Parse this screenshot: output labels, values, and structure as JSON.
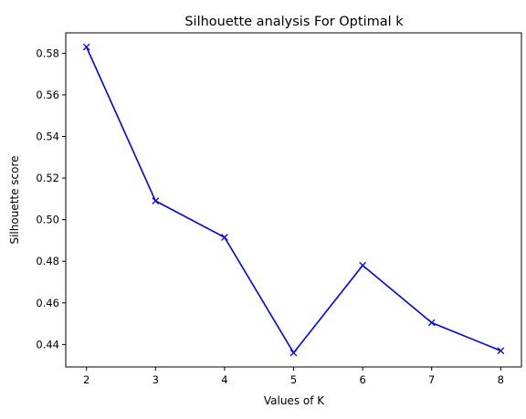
{
  "chart_data": {
    "type": "line",
    "title": "Silhouette analysis For Optimal k",
    "xlabel": "Values of K",
    "ylabel": "Silhouette score",
    "x": [
      2,
      3,
      4,
      5,
      6,
      7,
      8
    ],
    "series": [
      {
        "values": [
          0.583,
          0.509,
          0.4915,
          0.436,
          0.478,
          0.4505,
          0.437
        ],
        "color": "#0000ff",
        "marker": "x",
        "line_style": "solid"
      }
    ],
    "xlim": [
      1.7,
      8.3
    ],
    "ylim": [
      0.4292,
      0.5898
    ],
    "xticks": [
      "2",
      "3",
      "4",
      "5",
      "6",
      "7",
      "8"
    ],
    "yticks": [
      "0.44",
      "0.46",
      "0.48",
      "0.50",
      "0.52",
      "0.54",
      "0.56",
      "0.58"
    ],
    "grid": false,
    "legend": "none"
  }
}
